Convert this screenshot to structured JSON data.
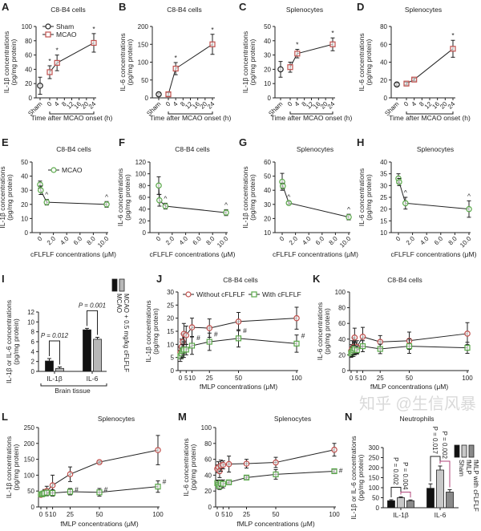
{
  "figure": {
    "watermark": "知乎 @生信风暴"
  },
  "chart_data": [
    {
      "panel": "A",
      "type": "line",
      "title": "C8-B4 cells",
      "ylabel": [
        "IL-1β concentrations",
        "(pg/mg protein)"
      ],
      "xlabel": "Time after MCAO onset (h)",
      "ylim": [
        0,
        100
      ],
      "yticks": [
        "0",
        "20",
        "40",
        "60",
        "80",
        "100"
      ],
      "xlim": [
        -3,
        24
      ],
      "xticks": [
        "Sham",
        "0",
        "4",
        "8",
        "12",
        "16",
        "20",
        "24"
      ],
      "legend": true,
      "series": [
        {
          "name": "Sham",
          "color": "#222222",
          "marker": "circle",
          "x": [
            "Sham"
          ],
          "y": [
            17
          ],
          "err": [
            12
          ]
        },
        {
          "name": "MCAO",
          "color": "#c0504d",
          "marker": "square",
          "x": [
            0,
            4,
            24
          ],
          "y": [
            36,
            49,
            77
          ],
          "err": [
            9,
            11,
            13
          ],
          "annot": "*",
          "annot_x": [
            0,
            4,
            24
          ]
        }
      ]
    },
    {
      "panel": "B",
      "type": "line",
      "title": "C8-B4 cells",
      "ylabel": [
        "IL-6 concentrations",
        "(pg/mg protein)"
      ],
      "xlabel": "Time after MCAO onset (h)",
      "ylim": [
        0,
        200
      ],
      "yticks": [
        "0",
        "50",
        "100",
        "150",
        "200"
      ],
      "xlim": [
        -3,
        24
      ],
      "xticks": [
        "Sham",
        "0",
        "4",
        "8",
        "12",
        "16",
        "20",
        "24"
      ],
      "series": [
        {
          "name": "Sham",
          "color": "#222222",
          "marker": "circle",
          "x": [
            "Sham"
          ],
          "y": [
            10
          ],
          "err": [
            3
          ]
        },
        {
          "name": "MCAO",
          "color": "#c0504d",
          "marker": "square",
          "x": [
            0,
            4,
            24
          ],
          "y": [
            10,
            82,
            150
          ],
          "err": [
            5,
            17,
            28
          ],
          "annot": "*",
          "annot_x": [
            4,
            24
          ]
        }
      ]
    },
    {
      "panel": "C",
      "type": "line",
      "title": "Splenocytes",
      "ylabel": [
        "IL-1β concentrations",
        "(pg/mg protein)"
      ],
      "xlabel": "Time after MCAO onset (h)",
      "ylim": [
        0,
        50
      ],
      "yticks": [
        "0",
        "10",
        "20",
        "30",
        "40",
        "50"
      ],
      "xlim": [
        -3,
        24
      ],
      "xticks": [
        "Sham",
        "0",
        "4",
        "8",
        "12",
        "16",
        "20",
        "24"
      ],
      "series": [
        {
          "name": "Sham",
          "color": "#222222",
          "marker": "circle",
          "x": [
            "Sham"
          ],
          "y": [
            20
          ],
          "err": [
            5.5
          ]
        },
        {
          "name": "MCAO",
          "color": "#c0504d",
          "marker": "square",
          "x": [
            0,
            4,
            24
          ],
          "y": [
            21.5,
            31,
            37.5
          ],
          "err": [
            3.5,
            3,
            4.5
          ],
          "annot": "*",
          "annot_x": [
            4,
            24
          ]
        }
      ]
    },
    {
      "panel": "D",
      "type": "line",
      "title": "Splenocytes",
      "ylabel": [
        "IL-6 concentrations",
        "(pg/mg protein)"
      ],
      "xlabel": "Time after MCAO onset (h)",
      "ylim": [
        0,
        80
      ],
      "yticks": [
        "0",
        "20",
        "40",
        "60",
        "80"
      ],
      "xlim": [
        -3,
        24
      ],
      "xticks": [
        "Sham",
        "0",
        "4",
        "8",
        "12",
        "16",
        "20",
        "24"
      ],
      "series": [
        {
          "name": "Sham",
          "color": "#222222",
          "marker": "circle",
          "x": [
            "Sham"
          ],
          "y": [
            15
          ],
          "err": [
            1.5
          ]
        },
        {
          "name": "MCAO",
          "color": "#c0504d",
          "marker": "square",
          "x": [
            0,
            4,
            24
          ],
          "y": [
            16,
            20.5,
            55
          ],
          "err": [
            1.5,
            1.5,
            9.5
          ],
          "annot": "*",
          "annot_x": [
            24
          ]
        }
      ]
    },
    {
      "panel": "E",
      "type": "line",
      "title": "C8-B4 cells",
      "ylabel": [
        "IL-1β concentrations",
        "(pg/mg protein)"
      ],
      "xlabel": "cFLFLF concentrations (μM)",
      "ylim": [
        0,
        50
      ],
      "yticks": [
        "0",
        "10",
        "20",
        "30",
        "40",
        "50"
      ],
      "xlim": [
        0,
        10
      ],
      "xticks": [
        "0",
        "2.0",
        "4.0",
        "6.0",
        "8.0",
        "10.0"
      ],
      "legend": true,
      "series": [
        {
          "name": "MCAO",
          "color": "#5aa84a",
          "marker": "circle",
          "x": [
            0,
            0.1,
            1,
            10
          ],
          "y": [
            34,
            30,
            21.5,
            20
          ],
          "err": [
            2.5,
            3,
            2,
            2
          ],
          "annot": "^",
          "annot_x": [
            1,
            10
          ]
        }
      ]
    },
    {
      "panel": "F",
      "type": "line",
      "title": "C8-B4 cells",
      "ylabel": [
        "IL-6 concentrations",
        "(pg/mg protein)"
      ],
      "xlabel": "cFLFLF concentrations (μM)",
      "ylim": [
        0,
        120
      ],
      "yticks": [
        "0",
        "20",
        "40",
        "60",
        "80",
        "100",
        "120"
      ],
      "xlim": [
        0,
        10
      ],
      "xticks": [
        "0",
        "2.0",
        "4.0",
        "6.0",
        "8.0",
        "10.0"
      ],
      "series": [
        {
          "name": "MCAO",
          "color": "#5aa84a",
          "marker": "circle",
          "x": [
            0,
            0.1,
            1,
            10
          ],
          "y": [
            80,
            55,
            45,
            34
          ],
          "err": [
            15,
            10,
            5,
            5
          ],
          "annot": "^",
          "annot_x": [
            1,
            10
          ]
        }
      ]
    },
    {
      "panel": "G",
      "type": "line",
      "title": "Splenocytes",
      "ylabel": [
        "IL-1β concentrations",
        "(pg/mg protein)"
      ],
      "xlabel": "cFLFLF concentrations (μM)",
      "ylim": [
        10,
        60
      ],
      "yticks": [
        "10",
        "20",
        "30",
        "40",
        "50",
        "60"
      ],
      "xlim": [
        0,
        10
      ],
      "xticks": [
        "0",
        "2.0",
        "4.0",
        "6.0",
        "8.0",
        "10.0"
      ],
      "series": [
        {
          "name": "MCAO",
          "color": "#5aa84a",
          "marker": "circle",
          "x": [
            0,
            0.1,
            1,
            10
          ],
          "y": [
            46,
            43,
            31,
            21
          ],
          "err": [
            6,
            2,
            1,
            2
          ],
          "annot": "^",
          "annot_x": [
            1,
            10
          ]
        }
      ]
    },
    {
      "panel": "H",
      "type": "line",
      "title": "Splenocytes",
      "ylabel": [
        "IL-6 concentrations",
        "(pg/mg protein)"
      ],
      "xlabel": "cFLFLF concentrations (μM)",
      "ylim": [
        10,
        40
      ],
      "yticks": [
        "10",
        "15",
        "20",
        "25",
        "30",
        "35",
        "40"
      ],
      "xlim": [
        0,
        10
      ],
      "xticks": [
        "0",
        "2.0",
        "4.0",
        "6.0",
        "8.0",
        "10.0"
      ],
      "series": [
        {
          "name": "MCAO",
          "color": "#5aa84a",
          "marker": "circle",
          "x": [
            0,
            0.1,
            1,
            10
          ],
          "y": [
            33,
            31.5,
            22.5,
            20
          ],
          "err": [
            2,
            1.5,
            2.5,
            3.5
          ],
          "annot": "^",
          "annot_x": [
            1,
            10
          ]
        }
      ]
    },
    {
      "panel": "I",
      "type": "bar",
      "title": "",
      "ylabel": [
        "IL-1β or IL-6 concentrations",
        "(pg/mg protein)"
      ],
      "xlabel": "Brain tissue",
      "ylim": [
        0,
        12
      ],
      "yticks": [
        "0",
        "2",
        "4",
        "6",
        "8",
        "10",
        "12"
      ],
      "groups": [
        "IL-1β",
        "IL-6"
      ],
      "series": [
        {
          "name": "MCAO",
          "color": "#111111",
          "values": [
            2.1,
            8.4
          ],
          "err": [
            0.5,
            0.3
          ]
        },
        {
          "name": "MCAO + 0.5 mg/kg cFLFLF",
          "color": "#b8b8b8",
          "values": [
            0.6,
            6.5
          ],
          "err": [
            0.3,
            0.4
          ]
        }
      ],
      "comparisons": [
        {
          "group": 0,
          "a": 0,
          "b": 1,
          "text": "P = 0.012"
        },
        {
          "group": 1,
          "a": 0,
          "b": 1,
          "text": "P = 0.001"
        }
      ]
    },
    {
      "panel": "J",
      "type": "line",
      "title": "C8-B4 cells",
      "ylabel": [
        "IL-1β concentrations",
        "(pg/mg protein)"
      ],
      "xlabel": "fMLP concentrations (μM)",
      "ylim": [
        0,
        30
      ],
      "yticks": [
        "0",
        "5",
        "10",
        "15",
        "20",
        "25",
        "30"
      ],
      "xlim": [
        0,
        100
      ],
      "xticks": [
        "0",
        "5",
        "10",
        "25",
        "50",
        "100"
      ],
      "legend": true,
      "series": [
        {
          "name": "Without cFLFLF",
          "color": "#c0504d",
          "marker": "circle",
          "x": [
            0,
            1,
            2,
            3,
            5,
            10,
            25,
            50,
            100
          ],
          "y": [
            7,
            9,
            11,
            14,
            13.5,
            16.5,
            16.2,
            18.7,
            20
          ],
          "err": [
            2,
            3,
            3,
            4,
            3.5,
            3.5,
            3.5,
            3.5,
            4.2
          ]
        },
        {
          "name": "With cFLFLF",
          "color": "#5aa84a",
          "marker": "square",
          "x": [
            0,
            1,
            2,
            3,
            5,
            10,
            25,
            50,
            100
          ],
          "y": [
            5.5,
            6.5,
            7.5,
            8,
            8,
            9.5,
            11,
            12.3,
            10.3
          ],
          "err": [
            2,
            2,
            2.5,
            3,
            2,
            3.3,
            3.3,
            3.3,
            3.3
          ],
          "annot": "#",
          "annot_x": [
            10,
            25,
            50,
            100
          ]
        }
      ]
    },
    {
      "panel": "K",
      "type": "line",
      "title": "C8-B4 cells",
      "ylabel": [
        "IL-6 concentrations",
        "(pg/mg protein)"
      ],
      "xlabel": "fMLP concentrations (μM)",
      "ylim": [
        0,
        100
      ],
      "yticks": [
        "0",
        "20",
        "40",
        "60",
        "80",
        "100"
      ],
      "xlim": [
        0,
        100
      ],
      "xticks": [
        "0",
        "5",
        "10",
        "25",
        "50",
        "100"
      ],
      "series": [
        {
          "name": "Without cFLFLF",
          "color": "#c0504d",
          "marker": "circle",
          "x": [
            0,
            1,
            2,
            3,
            5,
            10,
            25,
            50,
            100
          ],
          "y": [
            25,
            28,
            30,
            42,
            30,
            43,
            36.5,
            38,
            47
          ],
          "err": [
            8,
            10,
            12,
            12,
            8,
            12,
            8,
            11,
            14
          ]
        },
        {
          "name": "With cFLFLF",
          "color": "#5aa84a",
          "marker": "square",
          "x": [
            0,
            1,
            2,
            3,
            5,
            10,
            25,
            50,
            100
          ],
          "y": [
            22,
            24,
            26,
            28,
            26,
            31,
            27.5,
            31,
            29
          ],
          "err": [
            5,
            6,
            6,
            8,
            5,
            7,
            6,
            9,
            7
          ]
        }
      ]
    },
    {
      "panel": "L",
      "type": "line",
      "title": "Splenocytes",
      "ylabel": [
        "IL-1β concentrations",
        "(pg/mg protein)"
      ],
      "xlabel": "fMLP concentrations (μM)",
      "ylim": [
        0,
        250
      ],
      "yticks": [
        "0",
        "50",
        "100",
        "150",
        "200",
        "250"
      ],
      "xlim": [
        0,
        100
      ],
      "xticks": [
        "0",
        "5",
        "10",
        "25",
        "50",
        "100"
      ],
      "series": [
        {
          "name": "Without cFLFLF",
          "color": "#c0504d",
          "marker": "circle",
          "x": [
            0,
            1,
            2,
            3,
            5,
            10,
            25,
            50,
            100
          ],
          "y": [
            38,
            40,
            42,
            45,
            50,
            68,
            103,
            141,
            179
          ],
          "err": [
            5,
            6,
            8,
            10,
            15,
            32,
            23,
            3,
            46
          ]
        },
        {
          "name": "With cFLFLF",
          "color": "#5aa84a",
          "marker": "square",
          "x": [
            0,
            1,
            2,
            3,
            5,
            10,
            25,
            50,
            100
          ],
          "y": [
            40,
            40,
            42,
            43,
            45,
            44,
            48,
            46,
            64
          ],
          "err": [
            5,
            5,
            6,
            8,
            8,
            10,
            10,
            12,
            18
          ],
          "annot": "#",
          "annot_x": [
            25,
            50,
            100
          ]
        }
      ]
    },
    {
      "panel": "M",
      "type": "line",
      "title": "Splenocytes",
      "ylabel": [
        "IL-6 concentrations",
        "(pg/mg protein)"
      ],
      "xlabel": "fMLP concentrations (μM)",
      "ylim": [
        0,
        100
      ],
      "yticks": [
        "0",
        "20",
        "40",
        "60",
        "80",
        "100"
      ],
      "xlim": [
        0,
        100
      ],
      "xticks": [
        "0",
        "5",
        "10",
        "25",
        "50",
        "100"
      ],
      "series": [
        {
          "name": "Without cFLFLF",
          "color": "#c0504d",
          "marker": "circle",
          "x": [
            0,
            1,
            2,
            3,
            5,
            10,
            25,
            50,
            100
          ],
          "y": [
            48,
            50,
            45,
            52,
            53,
            54,
            54.5,
            56,
            72
          ],
          "err": [
            5,
            7,
            8,
            7,
            5,
            10,
            5.5,
            6.5,
            8
          ]
        },
        {
          "name": "With cFLFLF",
          "color": "#5aa84a",
          "marker": "square",
          "x": [
            0,
            1,
            2,
            3,
            5,
            10,
            25,
            50,
            100
          ],
          "y": [
            30,
            28,
            26,
            30,
            29,
            31,
            37,
            41,
            45
          ],
          "err": [
            4,
            5,
            4,
            4,
            5,
            2,
            2,
            6,
            2
          ],
          "annot": "#",
          "annot_x": [
            100
          ]
        }
      ]
    },
    {
      "panel": "N",
      "type": "bar",
      "title": "Neutrophils",
      "ylabel": [
        "IL-1β or IL-6 concentrations",
        "(pg/mg protein)"
      ],
      "xlabel": "",
      "ylim": [
        0,
        300
      ],
      "yticks": [
        "0",
        "50",
        "100",
        "150",
        "200",
        "250",
        "300"
      ],
      "groups": [
        "IL-1β",
        "IL-6"
      ],
      "series": [
        {
          "name": "Sham",
          "color": "#111111",
          "values": [
            35,
            97
          ],
          "err": [
            5,
            22
          ]
        },
        {
          "name": "fMLP",
          "color": "#c8c8c8",
          "values": [
            50,
            188
          ],
          "err": [
            4,
            20
          ]
        },
        {
          "name": "fMLP with cFLFLF",
          "color": "#8a8a8a",
          "values": [
            35,
            78
          ],
          "err": [
            4,
            12
          ]
        }
      ],
      "comparisons": [
        {
          "group": 0,
          "a": 0,
          "b": 1,
          "text": "P = 0.002",
          "color": "#222222"
        },
        {
          "group": 0,
          "a": 1,
          "b": 2,
          "text": "P = 0.004",
          "color": "#b0457a"
        },
        {
          "group": 1,
          "a": 0,
          "b": 1,
          "text": "P = 0.017",
          "color": "#222222"
        },
        {
          "group": 1,
          "a": 1,
          "b": 2,
          "text": "P = 0.002",
          "color": "#b0457a"
        }
      ]
    }
  ]
}
